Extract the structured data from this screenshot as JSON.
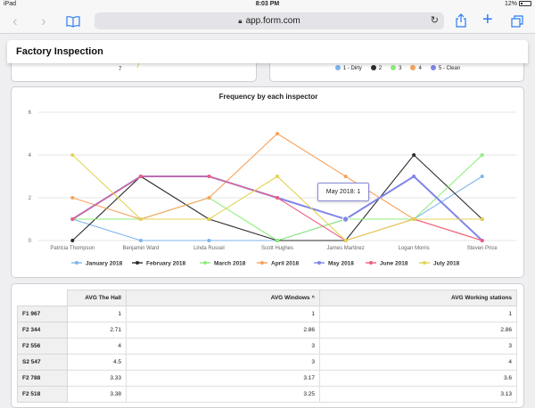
{
  "status_bar": {
    "device": "iPad",
    "time": "8:03 PM",
    "battery": "12%"
  },
  "browser": {
    "url": "app.form.com"
  },
  "app": {
    "title": "Factory Inspection"
  },
  "top_left_card": {
    "value": "7"
  },
  "top_legend": [
    {
      "label": "1 - Dirty",
      "color": "#7cb5ec"
    },
    {
      "label": "2",
      "color": "#2b2b2b"
    },
    {
      "label": "3",
      "color": "#90ed7d"
    },
    {
      "label": "4",
      "color": "#f7a35c"
    },
    {
      "label": "5 - Clean",
      "color": "#8085e9"
    }
  ],
  "chart_data": {
    "type": "line",
    "title": "Frequency by each inspector",
    "categories": [
      "Patricia Thompson",
      "Benjamin Ward",
      "Linda Russel",
      "Scott Hughes",
      "James Martinez",
      "Logan Morris",
      "Steven Price"
    ],
    "y_ticks": [
      "0",
      "2",
      "4",
      "6"
    ],
    "ylim": [
      0,
      6
    ],
    "series": [
      {
        "name": "January 2018",
        "color": "#7cb5ec",
        "values": [
          1,
          0,
          0,
          0,
          1,
          1,
          3
        ]
      },
      {
        "name": "February 2018",
        "color": "#2b2b2b",
        "values": [
          0,
          3,
          1,
          0,
          0,
          4,
          1
        ]
      },
      {
        "name": "March 2018",
        "color": "#90ed7d",
        "values": [
          1,
          1,
          2,
          0,
          1,
          1,
          4
        ]
      },
      {
        "name": "April 2018",
        "color": "#f7a35c",
        "values": [
          2,
          1,
          2,
          5,
          3,
          1,
          0
        ]
      },
      {
        "name": "May 2018",
        "color": "#8085e9",
        "values": [
          1,
          3,
          3,
          2,
          1,
          3,
          0
        ]
      },
      {
        "name": "June 2018",
        "color": "#f15c80",
        "values": [
          1,
          3,
          3,
          2,
          0,
          1,
          0
        ]
      },
      {
        "name": "July 2018",
        "color": "#e4d354",
        "values": [
          4,
          1,
          1,
          3,
          0,
          1,
          1
        ]
      }
    ],
    "legend": "bottom",
    "tooltip": "May 2018: 1"
  },
  "table": {
    "columns": [
      "AVG The Hall",
      "AVG Windows",
      "AVG Working stations"
    ],
    "sort_indicator": "^",
    "rows": [
      {
        "label": "F1 967",
        "values": [
          "1",
          "1",
          "1"
        ]
      },
      {
        "label": "F2 344",
        "values": [
          "2.71",
          "2.86",
          "2.86"
        ]
      },
      {
        "label": "F2 556",
        "values": [
          "4",
          "3",
          "3"
        ]
      },
      {
        "label": "S2 547",
        "values": [
          "4.5",
          "3",
          "4"
        ]
      },
      {
        "label": "F2 788",
        "values": [
          "3.33",
          "3.17",
          "3.6"
        ]
      },
      {
        "label": "F2 518",
        "values": [
          "3.38",
          "3.25",
          "3.13"
        ]
      }
    ]
  }
}
